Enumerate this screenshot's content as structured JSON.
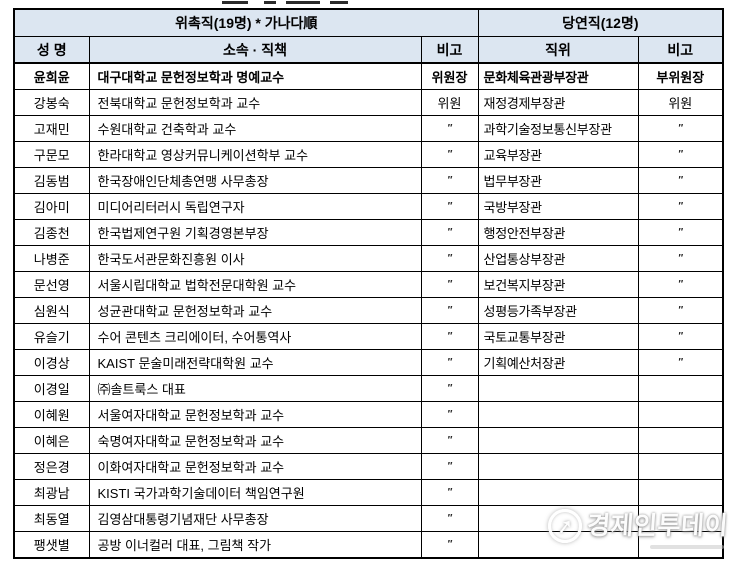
{
  "colors": {
    "header_bg": "#dce6f1",
    "border": "#000000",
    "text": "#000000",
    "watermark": "#ffffff"
  },
  "table": {
    "group_headers": [
      {
        "label": "위촉직(19명) * 가나다順"
      },
      {
        "label": "당연직(12명)"
      }
    ],
    "column_headers": [
      "성   명",
      "소속 · 직책",
      "비고",
      "직위",
      "비고"
    ],
    "rows": [
      {
        "name": "윤희윤",
        "affiliation": "대구대학교 문헌정보학과 명예교수",
        "note": "위원장",
        "position": "문화체육관광부장관",
        "position_note": "부위원장",
        "bold": true
      },
      {
        "name": "강봉숙",
        "affiliation": "전북대학교 문헌정보학과 교수",
        "note": "위원",
        "position": "재정경제부장관",
        "position_note": "위원",
        "bold": false
      },
      {
        "name": "고재민",
        "affiliation": "수원대학교 건축학과 교수",
        "note": "″",
        "position": "과학기술정보통신부장관",
        "position_note": "″",
        "bold": false
      },
      {
        "name": "구문모",
        "affiliation": "한라대학교 영상커뮤니케이션학부 교수",
        "note": "″",
        "position": "교육부장관",
        "position_note": "″",
        "bold": false
      },
      {
        "name": "김동범",
        "affiliation": "한국장애인단체총연맹 사무총장",
        "note": "″",
        "position": "법무부장관",
        "position_note": "″",
        "bold": false
      },
      {
        "name": "김아미",
        "affiliation": "미디어리터러시 독립연구자",
        "note": "″",
        "position": "국방부장관",
        "position_note": "″",
        "bold": false
      },
      {
        "name": "김종천",
        "affiliation": "한국법제연구원 기획경영본부장",
        "note": "″",
        "position": "행정안전부장관",
        "position_note": "″",
        "bold": false
      },
      {
        "name": "나병준",
        "affiliation": "한국도서관문화진흥원 이사",
        "note": "″",
        "position": "산업통상부장관",
        "position_note": "″",
        "bold": false
      },
      {
        "name": "문선영",
        "affiliation": "서울시립대학교 법학전문대학원 교수",
        "note": "″",
        "position": "보건복지부장관",
        "position_note": "″",
        "bold": false
      },
      {
        "name": "심원식",
        "affiliation": "성균관대학교 문헌정보학과 교수",
        "note": "″",
        "position": "성평등가족부장관",
        "position_note": "″",
        "bold": false
      },
      {
        "name": "유슬기",
        "affiliation": "수어 콘텐츠 크리에이터, 수어통역사",
        "note": "″",
        "position": "국토교통부장관",
        "position_note": "″",
        "bold": false
      },
      {
        "name": "이경상",
        "affiliation": "KAIST 문술미래전략대학원 교수",
        "note": "″",
        "position": "기획예산처장관",
        "position_note": "″",
        "bold": false
      },
      {
        "name": "이경일",
        "affiliation": "㈜솔트룩스 대표",
        "note": "″",
        "position": "",
        "position_note": "",
        "bold": false
      },
      {
        "name": "이혜원",
        "affiliation": "서울여자대학교 문헌정보학과 교수",
        "note": "″",
        "position": "",
        "position_note": "",
        "bold": false
      },
      {
        "name": "이혜은",
        "affiliation": "숙명여자대학교 문헌정보학과 교수",
        "note": "″",
        "position": "",
        "position_note": "",
        "bold": false
      },
      {
        "name": "정은경",
        "affiliation": "이화여자대학교 문헌정보학과 교수",
        "note": "″",
        "position": "",
        "position_note": "",
        "bold": false
      },
      {
        "name": "최광남",
        "affiliation": "KISTI 국가과학기술데이터 책임연구원",
        "note": "″",
        "position": "",
        "position_note": "",
        "bold": false
      },
      {
        "name": "최동열",
        "affiliation": "김영삼대통령기념재단 사무총장",
        "note": "″",
        "position": "",
        "position_note": "",
        "bold": false
      },
      {
        "name": "팽샛별",
        "affiliation": "공방 이너컬러 대표, 그림책 작가",
        "note": "″",
        "position": "",
        "position_note": "",
        "bold": false
      }
    ]
  },
  "watermark": {
    "text": "경제인투데이",
    "icon": "arrow-up-circle",
    "icon_glyph": "➚"
  }
}
